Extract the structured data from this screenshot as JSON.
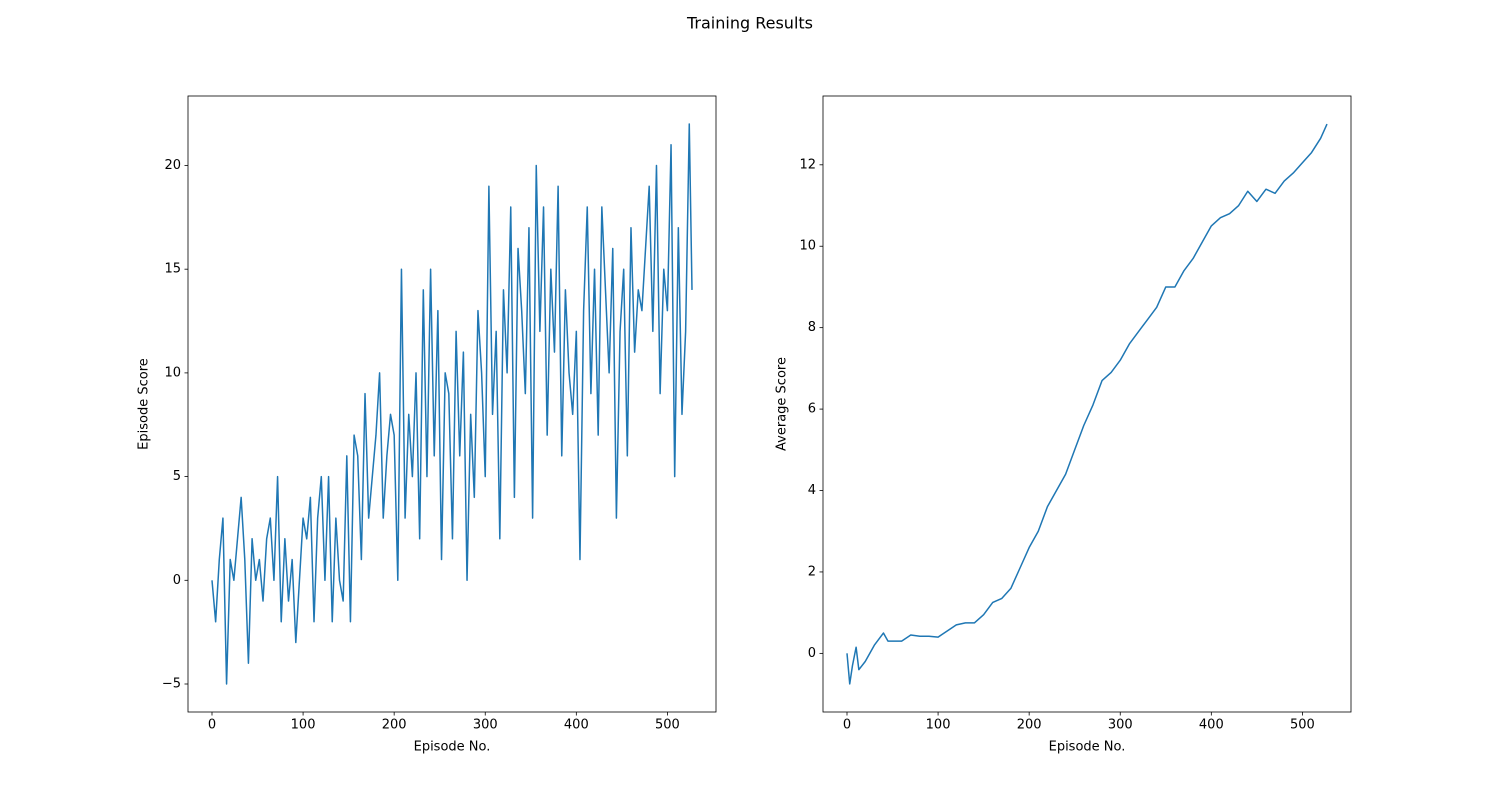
{
  "title": "Training Results",
  "chart_data": [
    {
      "type": "line",
      "x_label": "Episode No.",
      "y_label": "Episode Score",
      "color": "#1f77b4",
      "xlim": [
        -26.35,
        553.35
      ],
      "ylim": [
        -6.35,
        23.35
      ],
      "xticks": [
        0,
        100,
        200,
        300,
        400,
        500
      ],
      "yticks": [
        {
          "value": -5,
          "label": "−5"
        },
        0,
        5,
        10,
        15,
        20
      ],
      "x": [
        0,
        4,
        8,
        12,
        16,
        20,
        24,
        28,
        32,
        36,
        40,
        44,
        48,
        52,
        56,
        60,
        64,
        68,
        72,
        76,
        80,
        84,
        88,
        92,
        96,
        100,
        104,
        108,
        112,
        116,
        120,
        124,
        128,
        132,
        136,
        140,
        144,
        148,
        152,
        156,
        160,
        164,
        168,
        172,
        176,
        180,
        184,
        188,
        192,
        196,
        200,
        204,
        208,
        212,
        216,
        220,
        224,
        228,
        232,
        236,
        240,
        244,
        248,
        252,
        256,
        260,
        264,
        268,
        272,
        276,
        280,
        284,
        288,
        292,
        296,
        300,
        304,
        308,
        312,
        316,
        320,
        324,
        328,
        332,
        336,
        340,
        344,
        348,
        352,
        356,
        360,
        364,
        368,
        372,
        376,
        380,
        384,
        388,
        392,
        396,
        400,
        404,
        408,
        412,
        416,
        420,
        424,
        428,
        432,
        436,
        440,
        444,
        448,
        452,
        456,
        460,
        464,
        468,
        472,
        476,
        480,
        484,
        488,
        492,
        496,
        500,
        504,
        508,
        512,
        516,
        520,
        524,
        527
      ],
      "values": [
        0,
        -2,
        1,
        3,
        -5,
        1,
        0,
        2,
        4,
        1,
        -4,
        2,
        0,
        1,
        -1,
        2,
        3,
        0,
        5,
        -2,
        2,
        -1,
        1,
        -3,
        0,
        3,
        2,
        4,
        -2,
        3,
        5,
        0,
        5,
        -2,
        3,
        0,
        -1,
        6,
        -2,
        7,
        6,
        1,
        9,
        3,
        5,
        7,
        10,
        3,
        6,
        8,
        7,
        0,
        15,
        3,
        8,
        5,
        10,
        2,
        14,
        5,
        15,
        6,
        13,
        1,
        10,
        9,
        2,
        12,
        6,
        11,
        0,
        8,
        4,
        13,
        10,
        5,
        19,
        8,
        12,
        2,
        14,
        10,
        18,
        4,
        16,
        13,
        9,
        17,
        3,
        20,
        12,
        18,
        7,
        15,
        11,
        19,
        6,
        14,
        10,
        8,
        12,
        1,
        13,
        18,
        9,
        15,
        7,
        18,
        14,
        10,
        16,
        3,
        12,
        15,
        6,
        17,
        11,
        14,
        13,
        16,
        19,
        12,
        20,
        9,
        15,
        13,
        21,
        5,
        17,
        8,
        12,
        22,
        14
      ]
    },
    {
      "type": "line",
      "x_label": "Episode No.",
      "y_label": "Average Score",
      "color": "#1f77b4",
      "xlim": [
        -26.35,
        553.35
      ],
      "ylim": [
        -1.44,
        13.69
      ],
      "xticks": [
        0,
        100,
        200,
        300,
        400,
        500
      ],
      "yticks": [
        0,
        2,
        4,
        6,
        8,
        10,
        12
      ],
      "x": [
        0,
        3,
        6,
        10,
        13,
        20,
        30,
        40,
        45,
        50,
        60,
        70,
        80,
        90,
        100,
        110,
        120,
        130,
        140,
        150,
        160,
        170,
        180,
        190,
        200,
        210,
        220,
        230,
        240,
        250,
        260,
        270,
        280,
        290,
        300,
        310,
        320,
        330,
        340,
        350,
        360,
        370,
        380,
        390,
        400,
        410,
        420,
        430,
        440,
        450,
        460,
        470,
        480,
        490,
        500,
        510,
        520,
        527
      ],
      "values": [
        0,
        -0.75,
        -0.3,
        0.15,
        -0.4,
        -0.2,
        0.2,
        0.5,
        0.3,
        0.3,
        0.3,
        0.45,
        0.42,
        0.42,
        0.4,
        0.55,
        0.7,
        0.75,
        0.75,
        0.95,
        1.25,
        1.35,
        1.6,
        2.1,
        2.6,
        3.0,
        3.6,
        4.0,
        4.4,
        5.0,
        5.6,
        6.1,
        6.7,
        6.9,
        7.2,
        7.6,
        7.9,
        8.2,
        8.5,
        9.0,
        9.0,
        9.4,
        9.7,
        10.1,
        10.5,
        10.7,
        10.8,
        11.0,
        11.35,
        11.1,
        11.4,
        11.3,
        11.6,
        11.8,
        12.05,
        12.3,
        12.65,
        13.0
      ]
    }
  ]
}
